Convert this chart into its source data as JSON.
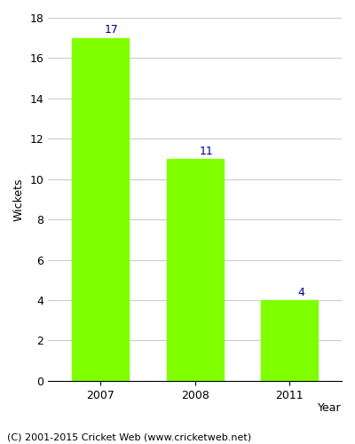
{
  "categories": [
    "2007",
    "2008",
    "2011"
  ],
  "values": [
    17,
    11,
    4
  ],
  "bar_color": "#7FFF00",
  "bar_edge_color": "#7FFF00",
  "label_color": "#00008B",
  "ylabel": "Wickets",
  "ylim": [
    0,
    18
  ],
  "yticks": [
    0,
    2,
    4,
    6,
    8,
    10,
    12,
    14,
    16,
    18
  ],
  "tick_fontsize": 9,
  "annotation_fontsize": 9,
  "footer_text": "(C) 2001-2015 Cricket Web (www.cricketweb.net)",
  "footer_fontsize": 8,
  "background_color": "#ffffff",
  "plot_background_color": "#ffffff",
  "grid_color": "#cccccc",
  "bar_width": 0.6
}
